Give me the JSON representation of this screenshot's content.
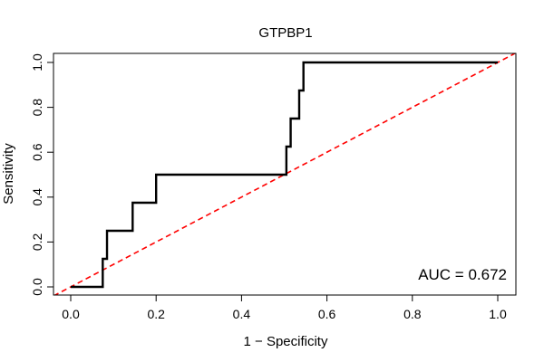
{
  "chart_data": {
    "type": "line",
    "title": "GTPBP1",
    "xlabel": "1 − Specificity",
    "ylabel": "Sensitivity",
    "xlim": [
      0,
      1
    ],
    "ylim": [
      0,
      1
    ],
    "x_ticks": [
      0,
      0.2,
      0.4,
      0.6,
      0.8,
      1.0
    ],
    "x_tick_labels": [
      "0.0",
      "0.2",
      "0.4",
      "0.6",
      "0.8",
      "1.0"
    ],
    "y_ticks": [
      0,
      0.2,
      0.4,
      0.6,
      0.8,
      1.0
    ],
    "y_tick_labels": [
      "0.0",
      "0.2",
      "0.4",
      "0.6",
      "0.8",
      "1.0"
    ],
    "grid": false,
    "annotation": "AUC = 0.672",
    "colors": {
      "roc": "#000000",
      "reference": "#ff0000"
    },
    "series": [
      {
        "name": "ROC curve",
        "style": "solid",
        "x": [
          0.0,
          0.075,
          0.075,
          0.085,
          0.085,
          0.145,
          0.145,
          0.2,
          0.2,
          0.505,
          0.505,
          0.515,
          0.515,
          0.535,
          0.535,
          0.545,
          0.545,
          1.0
        ],
        "y": [
          0.0,
          0.0,
          0.125,
          0.125,
          0.25,
          0.25,
          0.375,
          0.375,
          0.5,
          0.5,
          0.625,
          0.625,
          0.75,
          0.75,
          0.875,
          0.875,
          1.0,
          1.0
        ]
      },
      {
        "name": "Reference",
        "style": "dashed",
        "x": [
          -0.04,
          1.04
        ],
        "y": [
          -0.04,
          1.04
        ]
      }
    ]
  }
}
